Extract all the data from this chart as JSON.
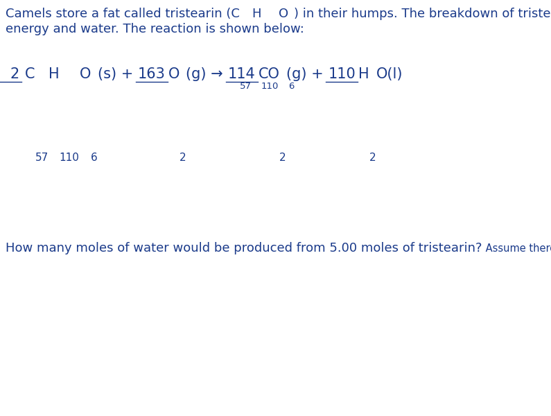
{
  "bg_color": "#ffffff",
  "text_color": "#1a3a8a",
  "font_family": "DejaVu Sans",
  "font_main": 13,
  "font_rxn": 15,
  "font_sub_rxn": 11,
  "font_small": 10.5,
  "font_sub_small": 8.5,
  "font_sub_para": 9.5,
  "fig_width": 7.95,
  "fig_height": 6.0,
  "dpi": 100
}
